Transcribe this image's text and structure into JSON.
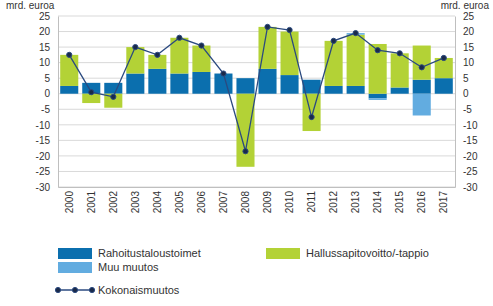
{
  "chart_data": {
    "type": "bar",
    "stacked": true,
    "ylabel": "mrd. euroa",
    "categories": [
      "2000",
      "2001",
      "2002",
      "2003",
      "2004",
      "2005",
      "2006",
      "2007",
      "2008",
      "2009",
      "2010",
      "2011",
      "2012",
      "2013",
      "2014",
      "2015",
      "2016",
      "2017"
    ],
    "ylim": [
      -30,
      25
    ],
    "yticks": [
      -30,
      -25,
      -20,
      -15,
      -10,
      -5,
      0,
      5,
      10,
      15,
      20,
      25
    ],
    "grid": true,
    "legend": "bottom",
    "series": [
      {
        "name": "Rahoitustaloustoimet",
        "type": "bar",
        "color": "#0b6fae",
        "values": [
          2.5,
          3.5,
          3.5,
          6.5,
          8,
          6.5,
          7,
          6.5,
          5,
          8,
          6,
          4.5,
          2.5,
          2.5,
          -1.5,
          2,
          4.5,
          5
        ]
      },
      {
        "name": "Hallussapitovoitto/-tappio",
        "type": "bar",
        "color": "#b3d236",
        "values": [
          10,
          -3,
          -4.5,
          8.5,
          4.5,
          11.5,
          8.5,
          0,
          -23.5,
          13.5,
          14,
          -12,
          14.5,
          16.5,
          16,
          11,
          11,
          6.5
        ]
      },
      {
        "name": "Muu muutos",
        "type": "bar",
        "color": "#62ace0",
        "values": [
          0,
          0,
          0,
          0,
          0,
          0,
          0,
          0,
          0,
          0,
          0,
          0,
          0,
          0.5,
          -0.5,
          0,
          -7,
          0
        ]
      },
      {
        "name": "Kokonaismuutos",
        "type": "line",
        "color": "#2b4a80",
        "marker": "circle",
        "values": [
          12.5,
          0.5,
          -1,
          15,
          12.5,
          18,
          15.5,
          6.5,
          -18.5,
          21.5,
          20.5,
          -7.5,
          17,
          19.5,
          14,
          13,
          8.5,
          11.5
        ]
      }
    ]
  }
}
